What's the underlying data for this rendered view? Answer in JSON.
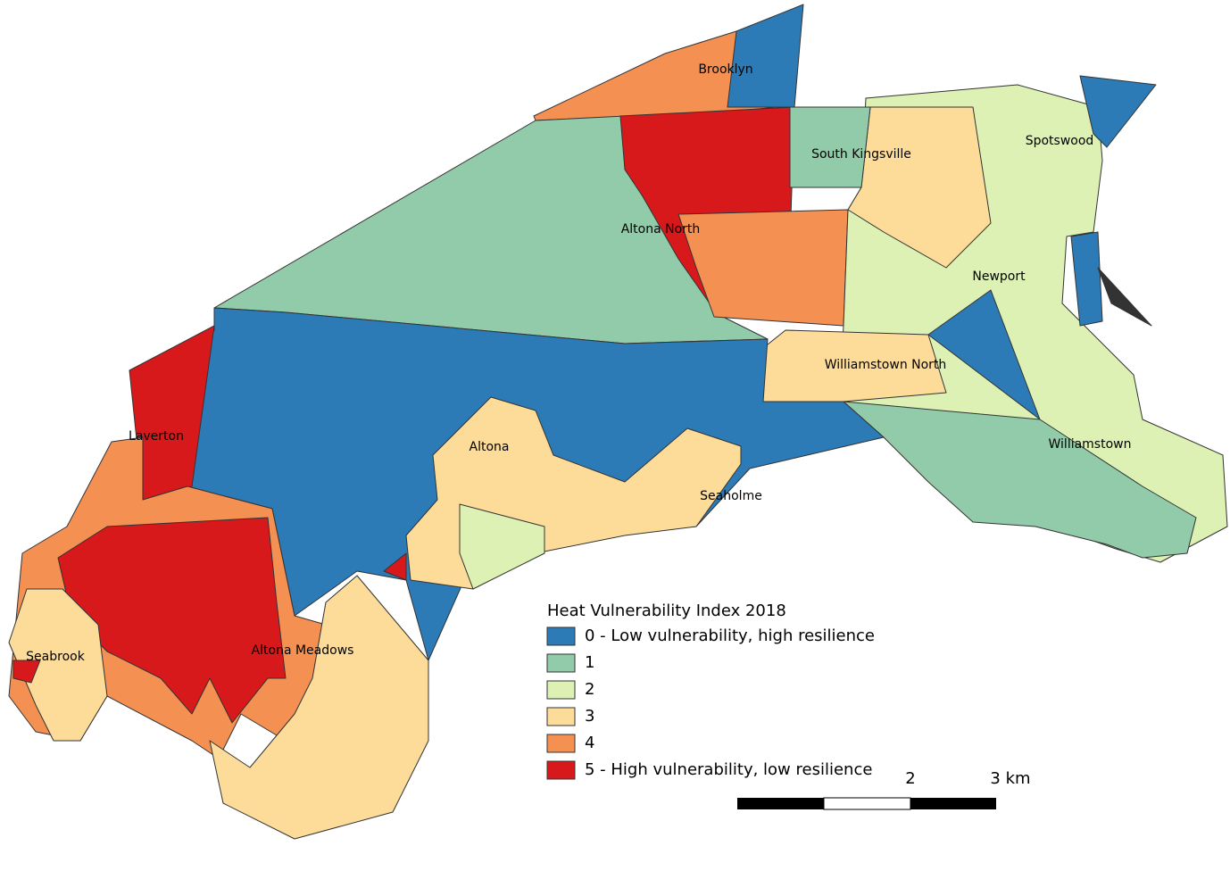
{
  "map": {
    "places": [
      "Brooklyn",
      "South Kingsville",
      "Spotswood",
      "Altona North",
      "Newport",
      "Williamstown North",
      "Laverton",
      "Altona",
      "Seaholme",
      "Williamstown",
      "Seabrook",
      "Altona Meadows"
    ]
  },
  "legend": {
    "title": "Heat Vulnerability Index 2018",
    "items": [
      {
        "label": "0 - Low vulnerability, high resilience",
        "color": "#2c7bb6"
      },
      {
        "label": "1",
        "color": "#92cba9"
      },
      {
        "label": "2",
        "color": "#ddf1b4"
      },
      {
        "label": "3",
        "color": "#fddc9a"
      },
      {
        "label": "4",
        "color": "#f59053"
      },
      {
        "label": "5 - High vulnerability, low resilience",
        "color": "#d7191c"
      }
    ]
  },
  "scale_bar": {
    "labels": [
      "2",
      "3 km"
    ]
  }
}
